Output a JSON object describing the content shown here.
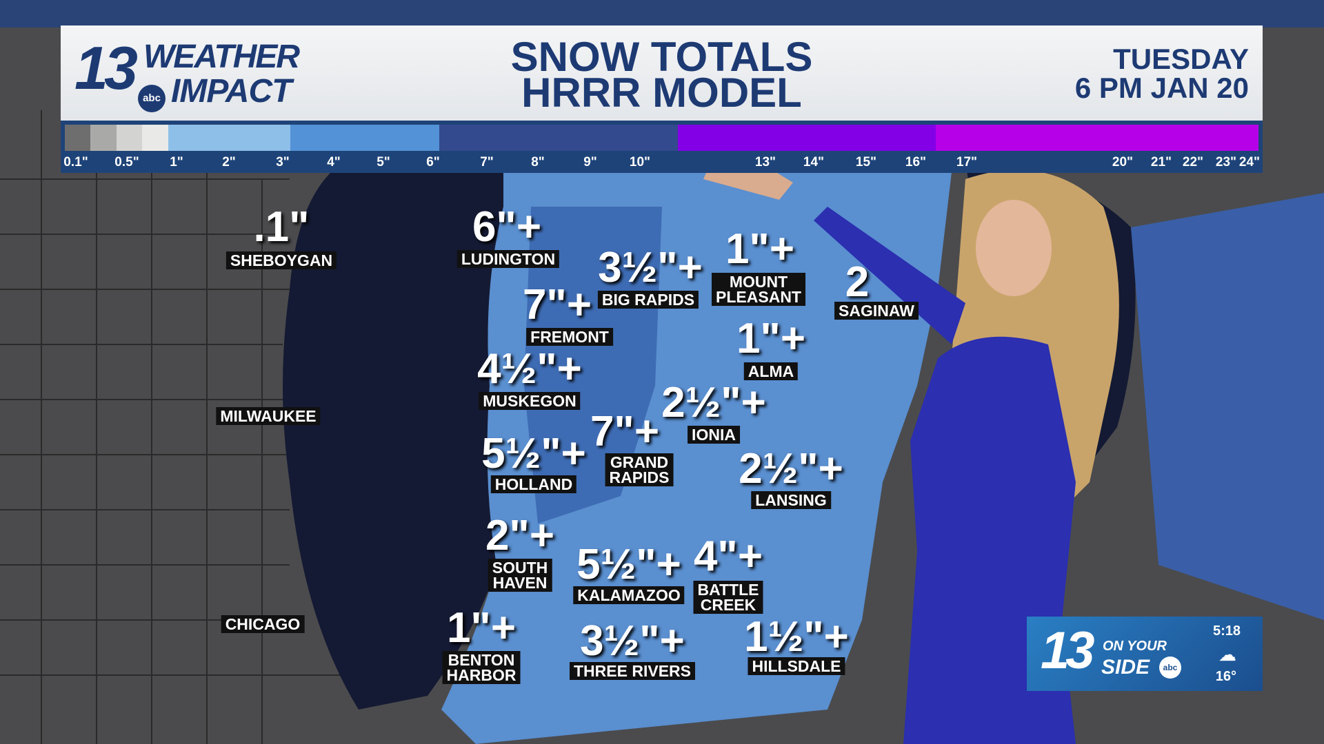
{
  "header": {
    "logo_number": "13",
    "logo_line1": "WEATHER",
    "logo_line2": "IMPACT",
    "logo_network": "abc",
    "title_line1": "SNOW TOTALS",
    "title_line2": "HRRR MODEL",
    "day": "TUESDAY",
    "time_date": "6 PM  JAN 20"
  },
  "scale": {
    "colors": [
      "#6e6e6e",
      "#a9aaa8",
      "#d3d4d2",
      "#e9eae8",
      "#8ebfe8",
      "#5392d6",
      "#344a8e",
      "#8300e6",
      "#b600e8"
    ],
    "ticks": [
      "0.1\"",
      "0.5\"",
      "1\"",
      "2\"",
      "3\"",
      "4\"",
      "5\"",
      "6\"",
      "7\"",
      "8\"",
      "9\"",
      "10\"",
      "13\"",
      "14\"",
      "15\"",
      "16\"",
      "17\"",
      "20\"",
      "21\"",
      "22\"",
      "23\"",
      "24\""
    ]
  },
  "cities": [
    {
      "amount": ".1\"",
      "name": "SHEBOYGAN"
    },
    {
      "amount": "6\"+",
      "name": "LUDINGTON"
    },
    {
      "amount": "3½\"+",
      "name": "BIG RAPIDS"
    },
    {
      "amount": "1\"+",
      "name": "MOUNT\nPLEASANT"
    },
    {
      "amount": "2",
      "name": "SAGINAW"
    },
    {
      "amount": "7\"+",
      "name": "FREMONT"
    },
    {
      "amount": "1\"+",
      "name": "ALMA"
    },
    {
      "amount": "4½\"+",
      "name": "MUSKEGON"
    },
    {
      "amount": "2½\"+",
      "name": "IONIA"
    },
    {
      "amount": "7\"+",
      "name": "GRAND\nRAPIDS"
    },
    {
      "amount": "5½\"+",
      "name": "HOLLAND"
    },
    {
      "amount": "2½\"+",
      "name": "LANSING"
    },
    {
      "amount": "2\"+",
      "name": "SOUTH\nHAVEN"
    },
    {
      "amount": "5½\"+",
      "name": "KALAMAZOO"
    },
    {
      "amount": "4\"+",
      "name": "BATTLE\nCREEK"
    },
    {
      "amount": "1\"+",
      "name": "BENTON\nHARBOR"
    },
    {
      "amount": "3½\"+",
      "name": "THREE RIVERS"
    },
    {
      "amount": "1½\"+",
      "name": "HILLSDALE"
    },
    {
      "amount": "",
      "name": "MILWAUKEE"
    },
    {
      "amount": "",
      "name": "CHICAGO"
    }
  ],
  "bug": {
    "number": "13",
    "line1": "ON YOUR",
    "line2": "SIDE",
    "network": "abc",
    "time": "5:18",
    "weather_icon": "snow-cloud-icon",
    "temperature": "16°"
  }
}
